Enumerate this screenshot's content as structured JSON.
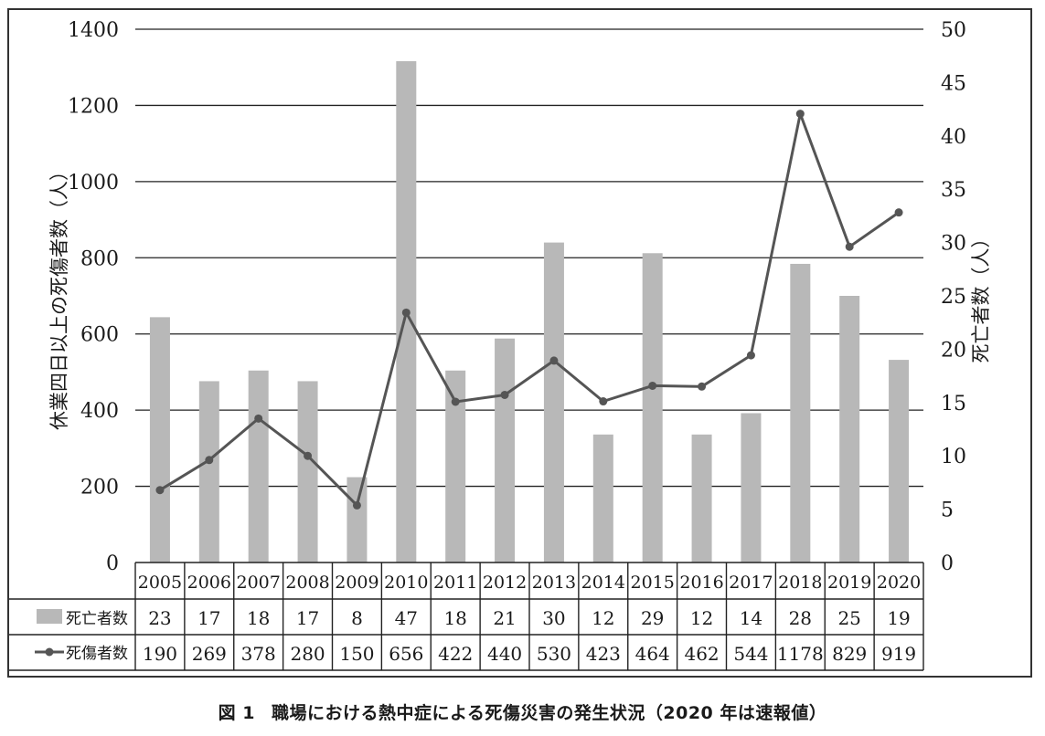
{
  "chart_data": {
    "type": "bar+line",
    "categories": [
      "2005",
      "2006",
      "2007",
      "2008",
      "2009",
      "2010",
      "2011",
      "2012",
      "2013",
      "2014",
      "2015",
      "2016",
      "2017",
      "2018",
      "2019",
      "2020"
    ],
    "series": [
      {
        "name": "死亡者数",
        "kind": "bar",
        "axis": "right",
        "color": "#b8b8b8",
        "values": [
          23,
          17,
          18,
          17,
          8,
          47,
          18,
          21,
          30,
          12,
          29,
          12,
          14,
          28,
          25,
          19
        ]
      },
      {
        "name": "死傷者数",
        "kind": "line",
        "axis": "left",
        "color": "#555555",
        "values": [
          190,
          269,
          378,
          280,
          150,
          656,
          422,
          440,
          530,
          423,
          464,
          462,
          544,
          1178,
          829,
          919
        ]
      }
    ],
    "y_left": {
      "label": "休業四日以上の死傷者数（人）",
      "ylim": [
        0,
        1400
      ],
      "ticks": [
        "0",
        "200",
        "400",
        "600",
        "800",
        "1000",
        "1200",
        "1400"
      ]
    },
    "y_right": {
      "label": "死亡者数（人）",
      "ylim": [
        0,
        50
      ],
      "ticks": [
        "0",
        "5",
        "10",
        "15",
        "20",
        "25",
        "30",
        "35",
        "40",
        "45",
        "50"
      ]
    },
    "grid": true,
    "legend": "data-table"
  },
  "caption": {
    "number": "図 1",
    "text": "職場における熱中症による死傷災害の発生状況（2020 年は速報値）"
  }
}
